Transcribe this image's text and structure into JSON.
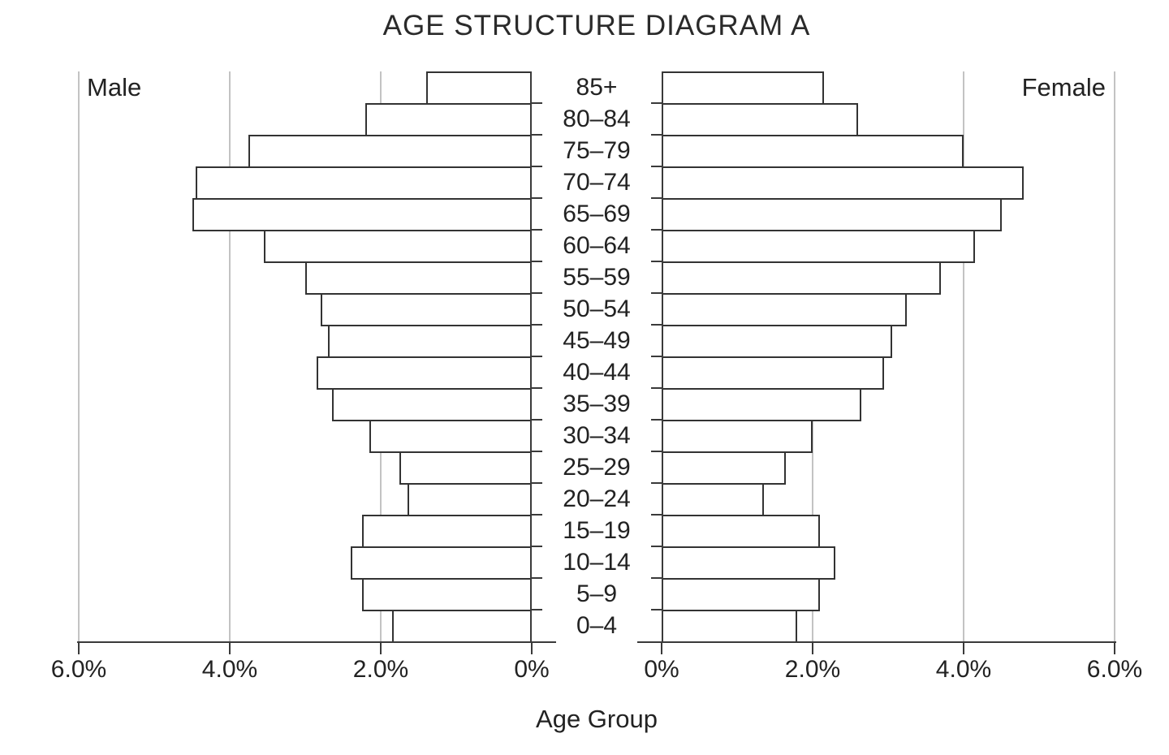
{
  "chart_data": {
    "type": "bar",
    "variant": "population-pyramid",
    "title": "AGE STRUCTURE DIAGRAM A",
    "xlabel": "Age Group",
    "left_series_label": "Male",
    "right_series_label": "Female",
    "categories_top_to_bottom": [
      "85+",
      "80–84",
      "75–79",
      "70–74",
      "65–69",
      "60–64",
      "55–59",
      "50–54",
      "45–49",
      "40–44",
      "35–39",
      "30–34",
      "25–29",
      "20–24",
      "15–19",
      "10–14",
      "5–9",
      "0–4"
    ],
    "series": [
      {
        "name": "Male",
        "side": "left",
        "unit": "% of population",
        "values": [
          1.4,
          2.2,
          3.75,
          4.45,
          4.5,
          3.55,
          3.0,
          2.8,
          2.7,
          2.85,
          2.65,
          2.15,
          1.75,
          1.65,
          2.25,
          2.4,
          2.25,
          1.85
        ]
      },
      {
        "name": "Female",
        "side": "right",
        "unit": "% of population",
        "values": [
          2.15,
          2.6,
          4.0,
          4.8,
          4.5,
          4.15,
          3.7,
          3.25,
          3.05,
          2.95,
          2.65,
          2.0,
          1.65,
          1.35,
          2.1,
          2.3,
          2.1,
          1.8
        ]
      }
    ],
    "x_axis": {
      "left_tick_labels": [
        "6.0%",
        "4.0%",
        "2.0%",
        "0%"
      ],
      "right_tick_labels": [
        "0%",
        "2.0%",
        "4.0%",
        "6.0%"
      ],
      "left_tick_percents": [
        6,
        4,
        2,
        0
      ],
      "right_tick_percents": [
        0,
        2,
        4,
        6
      ],
      "max_percent": 6.0,
      "gridlines_percent": [
        2,
        4,
        6
      ],
      "grid": "on"
    },
    "legend_position": "none",
    "colors": {
      "background": "#ffffff",
      "bar_fill": "#ffffff",
      "bar_border": "#333333",
      "gridline": "#c3c3c3",
      "axis": "#3a3a3a",
      "text": "#222222"
    }
  }
}
